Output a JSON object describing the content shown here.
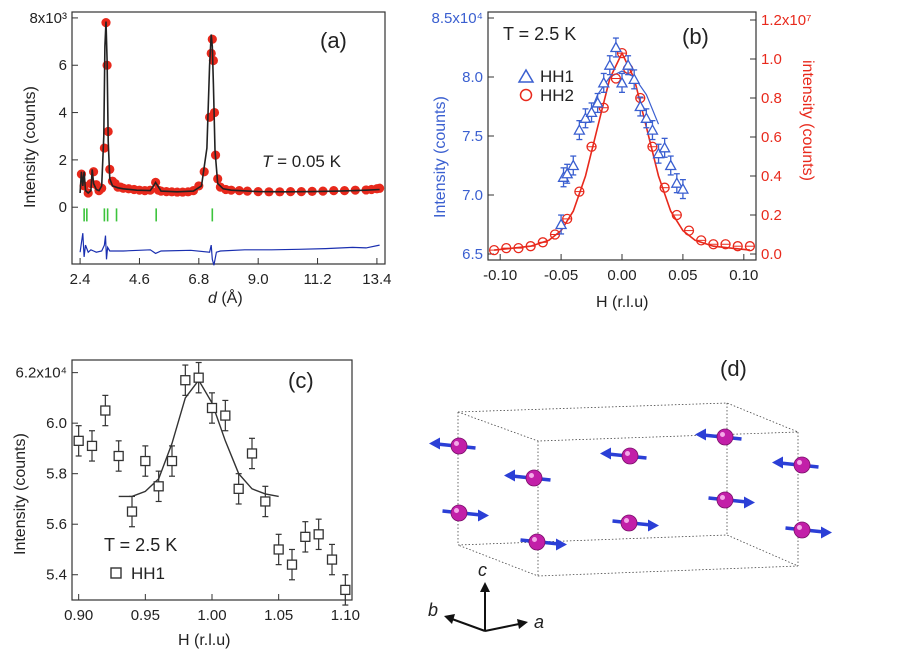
{
  "chart_data": [
    {
      "id": "a",
      "type": "line",
      "panel_label": "(a)",
      "annotation_var": "T",
      "annotation_rest": " = 0.05 K",
      "xlabel_var": "d",
      "xlabel_rest": " (Å)",
      "ylabel": "Intensity (counts)",
      "xlim": [
        2.1,
        13.7
      ],
      "ylim": [
        -2.4,
        8.25
      ],
      "x_ticks": [
        2.4,
        4.6,
        6.8,
        9.0,
        11.2,
        13.4
      ],
      "x_tick_labels": [
        "2.4",
        "4.6",
        "6.8",
        "9.0",
        "11.2",
        "13.4"
      ],
      "y_ticks": [
        0,
        2,
        4,
        6,
        8
      ],
      "y_tick_labels": [
        "0",
        "2",
        "4",
        "6",
        "8x10³"
      ],
      "ylabel_units": "×10³",
      "series": [
        {
          "name": "observed",
          "color": "#e8291c",
          "x": [
            2.45,
            2.55,
            2.7,
            2.8,
            2.9,
            3.0,
            3.1,
            3.2,
            3.3,
            3.36,
            3.4,
            3.44,
            3.5,
            3.6,
            3.7,
            3.8,
            3.9,
            4.0,
            4.2,
            4.4,
            4.6,
            4.8,
            5.0,
            5.2,
            5.3,
            5.4,
            5.6,
            5.8,
            6.0,
            6.2,
            6.4,
            6.6,
            6.8,
            7.0,
            7.2,
            7.26,
            7.3,
            7.34,
            7.38,
            7.42,
            7.5,
            7.6,
            7.8,
            8.0,
            8.3,
            8.6,
            9.0,
            9.4,
            9.8,
            10.2,
            10.6,
            11.0,
            11.4,
            11.8,
            12.2,
            12.6,
            13.0,
            13.2,
            13.4,
            13.5
          ],
          "y": [
            1.4,
            0.9,
            0.6,
            1.0,
            1.5,
            0.95,
            0.7,
            0.8,
            2.5,
            7.8,
            6.0,
            3.2,
            1.6,
            1.1,
            1.0,
            0.85,
            0.85,
            0.8,
            0.78,
            0.75,
            0.72,
            0.7,
            0.72,
            1.05,
            0.72,
            0.68,
            0.66,
            0.65,
            0.64,
            0.64,
            0.65,
            0.7,
            0.9,
            1.5,
            3.8,
            6.5,
            7.1,
            6.2,
            4.0,
            2.2,
            1.2,
            0.85,
            0.75,
            0.72,
            0.7,
            0.68,
            0.66,
            0.65,
            0.65,
            0.66,
            0.66,
            0.67,
            0.68,
            0.7,
            0.7,
            0.72,
            0.73,
            0.75,
            0.78,
            0.8
          ]
        },
        {
          "name": "calculated",
          "color": "#222222",
          "x": [
            2.4,
            2.45,
            2.5,
            2.55,
            2.6,
            2.7,
            2.8,
            2.85,
            2.9,
            3.0,
            3.1,
            3.2,
            3.28,
            3.32,
            3.36,
            3.4,
            3.44,
            3.5,
            3.6,
            3.8,
            4.0,
            4.5,
            5.0,
            5.15,
            5.2,
            5.25,
            5.4,
            6.0,
            6.6,
            6.9,
            7.1,
            7.2,
            7.26,
            7.3,
            7.34,
            7.4,
            7.5,
            7.7,
            8.0,
            9.0,
            10.0,
            11.0,
            12.0,
            13.0,
            13.5
          ],
          "y": [
            0.6,
            1.5,
            0.9,
            1.5,
            0.7,
            0.6,
            0.7,
            1.6,
            1.0,
            0.75,
            0.7,
            0.9,
            3.0,
            6.8,
            7.85,
            6.2,
            2.8,
            1.2,
            0.9,
            0.82,
            0.78,
            0.72,
            0.7,
            0.95,
            1.05,
            0.95,
            0.68,
            0.65,
            0.68,
            0.9,
            2.5,
            6.0,
            7.3,
            6.8,
            5.2,
            2.4,
            1.0,
            0.78,
            0.72,
            0.66,
            0.65,
            0.66,
            0.68,
            0.72,
            0.75
          ]
        },
        {
          "name": "difference",
          "color": "#1a2fb0",
          "x": [
            2.4,
            2.5,
            2.55,
            2.6,
            2.7,
            2.8,
            2.9,
            3.0,
            3.2,
            3.3,
            3.34,
            3.38,
            3.42,
            3.5,
            3.7,
            4.0,
            5.0,
            5.2,
            5.4,
            6.5,
            7.2,
            7.26,
            7.3,
            7.36,
            7.45,
            7.6,
            8.5,
            9.5,
            10.5,
            11.5,
            12.5,
            13.0,
            13.5
          ],
          "y": [
            -1.9,
            -1.1,
            -2.1,
            -1.6,
            -1.9,
            -1.8,
            -1.85,
            -1.9,
            -1.85,
            -1.6,
            -1.2,
            -2.2,
            -1.7,
            -1.85,
            -1.85,
            -1.85,
            -1.8,
            -1.95,
            -1.85,
            -1.82,
            -1.9,
            -1.6,
            -2.2,
            -2.45,
            -1.9,
            -1.85,
            -1.8,
            -1.8,
            -1.78,
            -1.75,
            -1.7,
            -1.72,
            -1.6
          ]
        },
        {
          "name": "bragg_positions",
          "color": "#3cc43c",
          "x": [
            2.55,
            2.65,
            3.3,
            3.42,
            3.75,
            5.22,
            7.3
          ]
        }
      ]
    },
    {
      "id": "b",
      "type": "line",
      "panel_label": "(b)",
      "annotation": "T = 2.5 K",
      "xlabel": "H (r.l.u)",
      "ylabel_left": "Intensity (counts)",
      "ylabel_right": "intensity (counts)",
      "xlim": [
        -0.11,
        0.11
      ],
      "ylim_left": [
        6.5,
        8.5
      ],
      "ylim_right": [
        0,
        1.2
      ],
      "x_ticks": [
        -0.1,
        -0.05,
        0.0,
        0.05,
        0.1
      ],
      "x_tick_labels": [
        "-0.10",
        "-0.05",
        "0.00",
        "0.05",
        "0.10"
      ],
      "y_left_ticks": [
        6.5,
        7.0,
        7.5,
        8.0,
        8.5
      ],
      "y_left_tick_labels": [
        "6.5",
        "7.0",
        "7.5",
        "8.0",
        "8.5x10⁴"
      ],
      "y_right_ticks": [
        0,
        0.2,
        0.4,
        0.6,
        0.8,
        1.0,
        1.2
      ],
      "y_right_tick_labels": [
        "0.0",
        "0.2",
        "0.4",
        "0.6",
        "0.8",
        "1.0",
        "1.2x10⁷"
      ],
      "legend": [
        "HH1",
        "HH2"
      ],
      "series": [
        {
          "name": "HH1",
          "axis": "left",
          "color": "#3a5fd0",
          "marker": "triangle",
          "x": [
            -0.05,
            -0.048,
            -0.045,
            -0.04,
            -0.035,
            -0.03,
            -0.025,
            -0.02,
            -0.015,
            -0.01,
            -0.005,
            0.0,
            0.005,
            0.01,
            0.015,
            0.02,
            0.025,
            0.03,
            0.035,
            0.04,
            0.045,
            0.05
          ],
          "y": [
            6.75,
            7.15,
            7.18,
            7.25,
            7.55,
            7.65,
            7.7,
            7.78,
            7.95,
            8.1,
            8.25,
            7.95,
            8.1,
            7.98,
            7.75,
            7.65,
            7.55,
            7.35,
            7.4,
            7.25,
            7.1,
            7.05
          ],
          "err": [
            0.08,
            0.08,
            0.08,
            0.08,
            0.08,
            0.08,
            0.08,
            0.08,
            0.08,
            0.08,
            0.08,
            0.08,
            0.08,
            0.08,
            0.08,
            0.08,
            0.08,
            0.08,
            0.08,
            0.08,
            0.08,
            0.08
          ]
        },
        {
          "name": "HH2",
          "axis": "right",
          "color": "#e8291c",
          "marker": "circle",
          "x": [
            -0.105,
            -0.095,
            -0.085,
            -0.075,
            -0.065,
            -0.055,
            -0.045,
            -0.035,
            -0.025,
            -0.015,
            -0.005,
            0.0,
            0.005,
            0.015,
            0.025,
            0.035,
            0.045,
            0.055,
            0.065,
            0.075,
            0.085,
            0.095,
            0.105
          ],
          "y": [
            0.02,
            0.03,
            0.03,
            0.04,
            0.06,
            0.1,
            0.18,
            0.32,
            0.55,
            0.75,
            0.9,
            1.03,
            0.95,
            0.8,
            0.55,
            0.34,
            0.2,
            0.12,
            0.07,
            0.05,
            0.05,
            0.04,
            0.04
          ]
        },
        {
          "name": "fit_HH1",
          "axis": "left",
          "color": "#3a5fd0",
          "x": [
            -0.03,
            -0.02,
            -0.01,
            0.0,
            0.01,
            0.02,
            0.03
          ],
          "y": [
            7.6,
            7.85,
            8.0,
            8.05,
            8.0,
            7.85,
            7.6
          ]
        },
        {
          "name": "fit_HH2",
          "axis": "right",
          "color": "#e8291c",
          "x": [
            -0.105,
            -0.09,
            -0.075,
            -0.06,
            -0.05,
            -0.04,
            -0.03,
            -0.02,
            -0.01,
            0.0,
            0.01,
            0.02,
            0.03,
            0.04,
            0.05,
            0.06,
            0.075,
            0.09,
            0.105
          ],
          "y": [
            0.02,
            0.03,
            0.04,
            0.07,
            0.12,
            0.22,
            0.4,
            0.65,
            0.9,
            1.03,
            0.9,
            0.65,
            0.4,
            0.22,
            0.12,
            0.07,
            0.04,
            0.03,
            0.02
          ]
        }
      ]
    },
    {
      "id": "c",
      "type": "scatter",
      "panel_label": "(c)",
      "annotation": "T = 2.5 K",
      "legend": [
        "HH1"
      ],
      "xlabel": "H (r.l.u)",
      "ylabel": "Intensity (counts)",
      "xlim": [
        0.895,
        1.105
      ],
      "ylim": [
        5.3,
        6.25
      ],
      "x_ticks": [
        0.9,
        0.95,
        1.0,
        1.05,
        1.1
      ],
      "x_tick_labels": [
        "0.90",
        "0.95",
        "1.00",
        "1.05",
        "1.10"
      ],
      "y_ticks": [
        5.4,
        5.6,
        5.8,
        6.0,
        6.2
      ],
      "y_tick_labels": [
        "5.4",
        "5.6",
        "5.8",
        "6.0",
        "6.2x10⁴"
      ],
      "series": [
        {
          "name": "HH1",
          "color": "#333333",
          "marker": "square",
          "x": [
            0.9,
            0.91,
            0.92,
            0.93,
            0.94,
            0.95,
            0.96,
            0.97,
            0.98,
            0.99,
            1.0,
            1.01,
            1.02,
            1.03,
            1.04,
            1.05,
            1.06,
            1.07,
            1.08,
            1.09,
            1.1
          ],
          "y": [
            5.93,
            5.91,
            6.05,
            5.87,
            5.65,
            5.85,
            5.75,
            5.85,
            6.17,
            6.18,
            6.06,
            6.03,
            5.74,
            5.88,
            5.69,
            5.5,
            5.44,
            5.55,
            5.56,
            5.46,
            5.34
          ],
          "err": [
            0.06,
            0.06,
            0.06,
            0.06,
            0.06,
            0.06,
            0.06,
            0.06,
            0.06,
            0.06,
            0.06,
            0.06,
            0.06,
            0.06,
            0.06,
            0.06,
            0.06,
            0.06,
            0.06,
            0.06,
            0.06
          ]
        },
        {
          "name": "fit",
          "color": "#333333",
          "x": [
            0.93,
            0.94,
            0.95,
            0.96,
            0.97,
            0.98,
            0.99,
            1.0,
            1.01,
            1.02,
            1.03,
            1.04,
            1.05
          ],
          "y": [
            5.71,
            5.71,
            5.73,
            5.78,
            5.92,
            6.1,
            6.17,
            6.08,
            5.93,
            5.8,
            5.74,
            5.72,
            5.71
          ]
        }
      ]
    }
  ],
  "panel_d": {
    "label": "(d)",
    "axis_a": "a",
    "axis_b": "b",
    "axis_c": "c",
    "atom_color": "#c21fa8",
    "moment_color": "#2b3fd6"
  }
}
